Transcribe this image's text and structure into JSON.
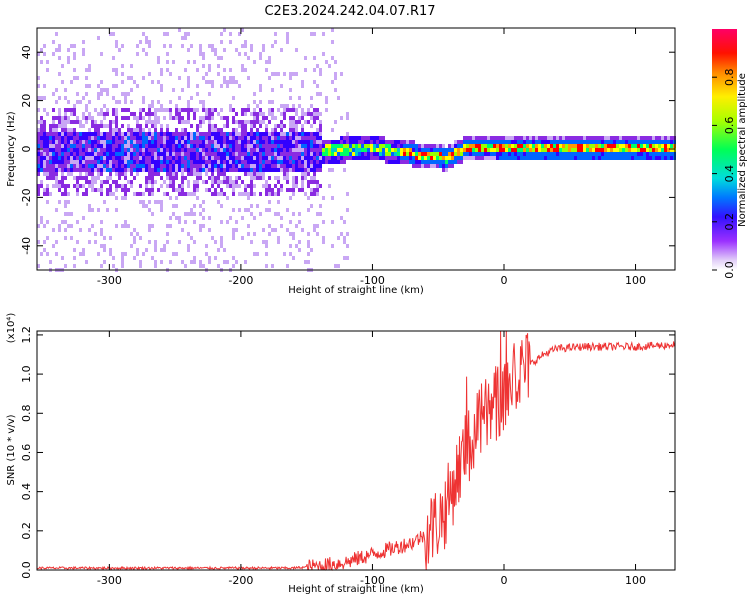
{
  "title": "C2E3.2024.242.04.07.R17",
  "chart_data": [
    {
      "type": "heatmap",
      "title": "C2E3.2024.242.04.07.R17",
      "xlabel": "Height of straight line (km)",
      "ylabel": "Frequency (Hz)",
      "xlim": [
        -355,
        130
      ],
      "ylim": [
        -50,
        50
      ],
      "xticks": [
        -300,
        -200,
        -100,
        0,
        100
      ],
      "xtick_labels": [
        "-300",
        "-200",
        "-100",
        "0",
        "100"
      ],
      "yticks": [
        -40,
        -20,
        0,
        20,
        40
      ],
      "ytick_labels": [
        "-40",
        "-20",
        "0",
        "20",
        "40"
      ],
      "colorbar": {
        "label": "Normalized spectral amplitude",
        "range": [
          0,
          1
        ],
        "ticks": [
          0.0,
          0.2,
          0.4,
          0.6,
          0.8
        ],
        "tick_labels": [
          "0.0",
          "0.2",
          "0.4",
          "0.6",
          "0.8"
        ],
        "colors": [
          "#ffffff",
          "#c9a7f4",
          "#8a2be2",
          "#3300ff",
          "#0066ff",
          "#00cccc",
          "#00ff66",
          "#99ff00",
          "#ffff00",
          "#ff9900",
          "#ff0000",
          "#ff0066"
        ]
      },
      "signal_description_points": {
        "center_frequency_hz": [
          {
            "x": -355,
            "y": 0
          },
          {
            "x": -140,
            "y": 0
          },
          {
            "x": -100,
            "y": 1
          },
          {
            "x": -60,
            "y": -2
          },
          {
            "x": -45,
            "y": -3
          },
          {
            "x": -30,
            "y": 1
          },
          {
            "x": 0,
            "y": 0.5
          },
          {
            "x": 130,
            "y": 0.5
          }
        ]
      }
    },
    {
      "type": "line",
      "xlabel": "Height of straight line (km)",
      "ylabel": "SNR (10 * v/v)",
      "y_scale_label": "(x10⁴)",
      "xlim": [
        -355,
        130
      ],
      "ylim": [
        0,
        1.22
      ],
      "xticks": [
        -300,
        -200,
        -100,
        0,
        100
      ],
      "xtick_labels": [
        "-300",
        "-200",
        "-100",
        "0",
        "100"
      ],
      "yticks": [
        0.0,
        0.2,
        0.4,
        0.6,
        0.8,
        1.0,
        1.2
      ],
      "ytick_labels": [
        "0.0",
        "0.2",
        "0.4",
        "0.6",
        "0.8",
        "1.0",
        "1.2"
      ],
      "series": [
        {
          "name": "SNR",
          "color": "#ee3333",
          "x": [
            -355,
            -300,
            -250,
            -200,
            -160,
            -140,
            -120,
            -100,
            -90,
            -80,
            -70,
            -60,
            -50,
            -45,
            -40,
            -35,
            -30,
            -25,
            -20,
            -15,
            -10,
            -5,
            0,
            5,
            10,
            20,
            30,
            40,
            60,
            80,
            100,
            130
          ],
          "y": [
            0.01,
            0.01,
            0.01,
            0.01,
            0.01,
            0.02,
            0.04,
            0.08,
            0.1,
            0.12,
            0.14,
            0.18,
            0.25,
            0.3,
            0.4,
            0.5,
            0.6,
            0.65,
            0.72,
            0.78,
            0.8,
            0.85,
            0.9,
            0.95,
            1.0,
            1.05,
            1.1,
            1.13,
            1.14,
            1.14,
            1.14,
            1.15
          ]
        }
      ]
    }
  ]
}
